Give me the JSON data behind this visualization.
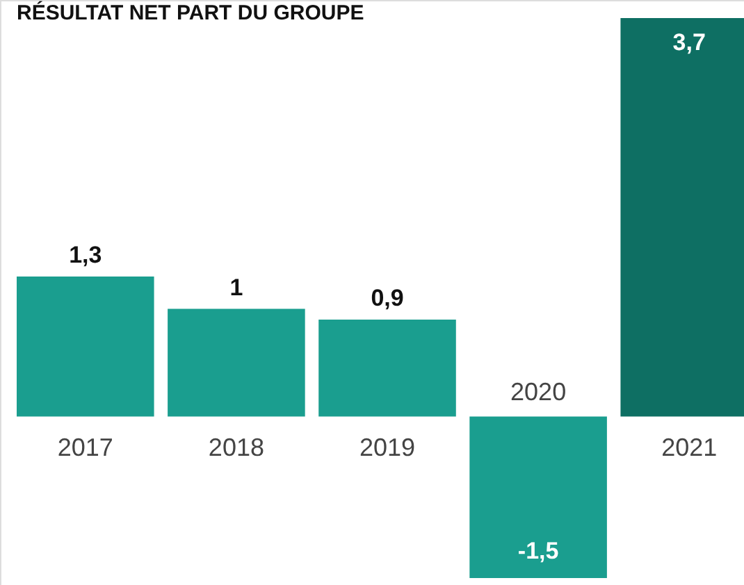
{
  "chart_data": {
    "type": "bar",
    "title": "RÉSULTAT NET PART DU GROUPE",
    "categories": [
      "2017",
      "2018",
      "2019",
      "2020",
      "2021"
    ],
    "values": [
      1.3,
      1,
      0.9,
      -1.5,
      3.7
    ],
    "colors": [
      "#1a9e8f",
      "#1a9e8f",
      "#1a9e8f",
      "#1a9e8f",
      "#0e6f63"
    ],
    "value_labels": [
      "1,3",
      "1",
      "0,9",
      "-1,5",
      "3,7"
    ]
  }
}
